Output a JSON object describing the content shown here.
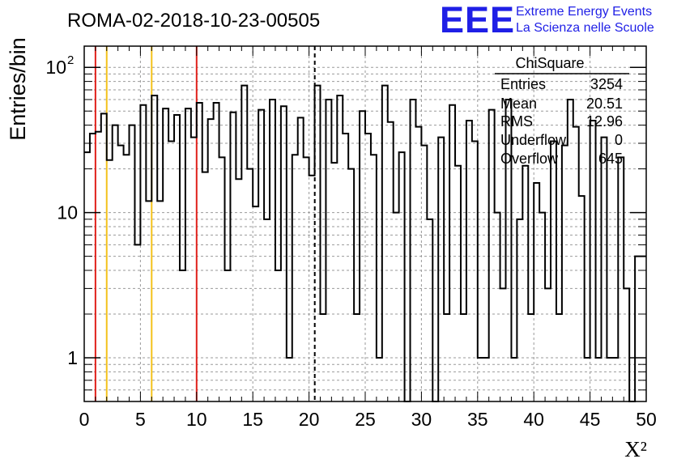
{
  "colors": {
    "histogram": "#000000",
    "grid": "#9a9a9a",
    "red_lines": "#e0201b",
    "yellow_lines": "#f4c21b",
    "dashed_line": "#000000",
    "logo": "#1f1fe6"
  },
  "header": {
    "run_title": "ROMA-02-2018-10-23-00505",
    "logo_text": "EEE",
    "logo_line1": "Extreme Energy Events",
    "logo_line2": "La Scienza nelle Scuole"
  },
  "stats": {
    "title": "ChiSquare",
    "rows": [
      {
        "label": "Entries",
        "value": "3254"
      },
      {
        "label": "Mean",
        "value": "20.51"
      },
      {
        "label": "RMS",
        "value": "12.96"
      },
      {
        "label": "Underflow",
        "value": "0"
      },
      {
        "label": "Overflow",
        "value": "645"
      }
    ]
  },
  "chart_data": {
    "type": "bar",
    "title": "ROMA-02-2018-10-23-00505",
    "xlabel": "X²",
    "ylabel": "Entries/bin",
    "xlim": [
      0,
      50
    ],
    "ylim": [
      0.5,
      140
    ],
    "yscale": "log",
    "grid": true,
    "bin_width": 0.5,
    "xticks": [
      "0",
      "5",
      "10",
      "15",
      "20",
      "25",
      "30",
      "35",
      "40",
      "45",
      "50"
    ],
    "yticks": [
      {
        "value": 1,
        "label": "1"
      },
      {
        "value": 10,
        "label": "10"
      },
      {
        "value": 100,
        "label": "10",
        "exp": "2"
      }
    ],
    "values": [
      26,
      35,
      36,
      48,
      23,
      40,
      29,
      25,
      40,
      6,
      55,
      12,
      64,
      12,
      52,
      31,
      47,
      4,
      52,
      33,
      57,
      19,
      44,
      57,
      24,
      4,
      49,
      17,
      75,
      20,
      11,
      51,
      9,
      60,
      4,
      54,
      1,
      25,
      45,
      24,
      18,
      75,
      2,
      60,
      22,
      64,
      35,
      20,
      2,
      50,
      35,
      25,
      1,
      75,
      42,
      10,
      26,
      0.3,
      60,
      39,
      29,
      9,
      0.3,
      33,
      2,
      55,
      21,
      2,
      43,
      31,
      1,
      1,
      51,
      10,
      3,
      60,
      1,
      9,
      21,
      2,
      16,
      10,
      3,
      31,
      2,
      29,
      60,
      39,
      13,
      1,
      43,
      1,
      33,
      1,
      1,
      24,
      3,
      0.3,
      5,
      5
    ],
    "reference_lines": [
      {
        "x": 1,
        "color": "red"
      },
      {
        "x": 2,
        "color": "yellow"
      },
      {
        "x": 6,
        "color": "yellow"
      },
      {
        "x": 10,
        "color": "red"
      },
      {
        "x": 20.51,
        "color": "black",
        "style": "dashed"
      }
    ]
  }
}
